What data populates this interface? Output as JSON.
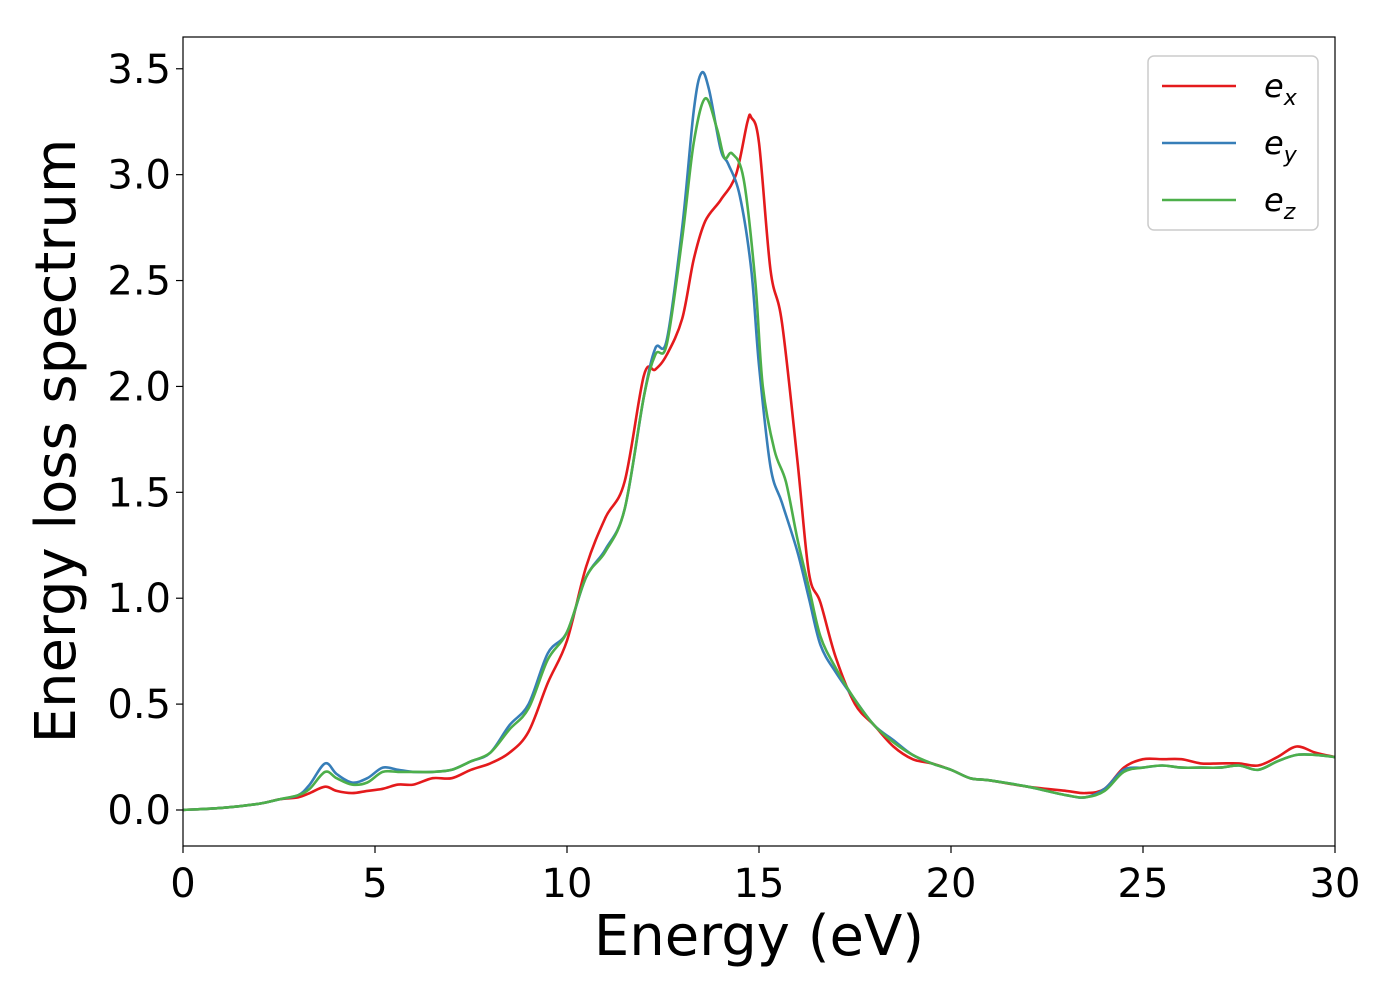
{
  "chart_data": {
    "type": "line",
    "title": "",
    "xlabel": "Energy (eV)",
    "ylabel": "Energy loss spectrum",
    "xlim": [
      0,
      30
    ],
    "ylim": [
      -0.17,
      3.65
    ],
    "xticks": [
      0,
      5,
      10,
      15,
      20,
      25,
      30
    ],
    "xtick_labels": [
      "0",
      "5",
      "10",
      "15",
      "20",
      "25",
      "30"
    ],
    "yticks": [
      0.0,
      0.5,
      1.0,
      1.5,
      2.0,
      2.5,
      3.0,
      3.5
    ],
    "ytick_labels": [
      "0.0",
      "0.5",
      "1.0",
      "1.5",
      "2.0",
      "2.5",
      "3.0",
      "3.5"
    ],
    "grid": false,
    "legend_position": "top-right",
    "series": [
      {
        "name": "e_x",
        "label_base": "e",
        "label_sub": "x",
        "color": "#e41a1c",
        "x": [
          0,
          1,
          2,
          2.5,
          3,
          3.3,
          3.7,
          4.0,
          4.4,
          4.8,
          5.2,
          5.6,
          6.0,
          6.5,
          7.0,
          7.5,
          8.0,
          8.5,
          9.0,
          9.5,
          10.0,
          10.5,
          11.0,
          11.5,
          12.0,
          12.3,
          12.6,
          13.0,
          13.3,
          13.6,
          14.0,
          14.4,
          14.7,
          14.8,
          15.0,
          15.3,
          15.6,
          16.0,
          16.3,
          16.6,
          17.0,
          17.5,
          18.0,
          18.5,
          19.0,
          19.5,
          20.0,
          20.5,
          21.0,
          22.0,
          23.0,
          23.5,
          24.0,
          24.5,
          25.0,
          25.5,
          26.0,
          26.5,
          27.0,
          27.5,
          28.0,
          28.5,
          29.0,
          29.5,
          30.0
        ],
        "y": [
          0.0,
          0.01,
          0.03,
          0.05,
          0.06,
          0.08,
          0.11,
          0.09,
          0.08,
          0.09,
          0.1,
          0.12,
          0.12,
          0.15,
          0.15,
          0.19,
          0.22,
          0.27,
          0.37,
          0.6,
          0.8,
          1.15,
          1.38,
          1.55,
          2.05,
          2.08,
          2.15,
          2.32,
          2.6,
          2.78,
          2.88,
          3.0,
          3.25,
          3.27,
          3.15,
          2.55,
          2.3,
          1.65,
          1.12,
          0.98,
          0.72,
          0.5,
          0.4,
          0.3,
          0.24,
          0.22,
          0.19,
          0.15,
          0.14,
          0.11,
          0.09,
          0.08,
          0.1,
          0.2,
          0.24,
          0.24,
          0.24,
          0.22,
          0.22,
          0.22,
          0.21,
          0.25,
          0.3,
          0.27,
          0.25
        ]
      },
      {
        "name": "e_y",
        "label_base": "e",
        "label_sub": "y",
        "color": "#377eb8",
        "x": [
          0,
          1,
          2,
          2.5,
          3,
          3.3,
          3.7,
          4.0,
          4.4,
          4.8,
          5.2,
          5.6,
          6.0,
          6.5,
          7.0,
          7.5,
          8.0,
          8.5,
          9.0,
          9.5,
          10.0,
          10.5,
          11.0,
          11.5,
          12.0,
          12.3,
          12.6,
          13.0,
          13.3,
          13.5,
          13.7,
          14.0,
          14.2,
          14.5,
          14.8,
          15.0,
          15.3,
          15.6,
          16.0,
          16.3,
          16.6,
          17.0,
          17.5,
          18.0,
          18.5,
          19.0,
          19.5,
          20.0,
          20.5,
          21.0,
          22.0,
          23.0,
          23.5,
          24.0,
          24.5,
          25.0,
          25.5,
          26.0,
          26.5,
          27.0,
          27.5,
          28.0,
          28.5,
          29.0,
          29.5,
          30.0
        ],
        "y": [
          0.0,
          0.01,
          0.03,
          0.05,
          0.07,
          0.12,
          0.22,
          0.17,
          0.13,
          0.15,
          0.2,
          0.19,
          0.18,
          0.18,
          0.19,
          0.23,
          0.27,
          0.4,
          0.5,
          0.74,
          0.84,
          1.1,
          1.23,
          1.42,
          1.95,
          2.18,
          2.22,
          2.75,
          3.3,
          3.48,
          3.4,
          3.12,
          3.05,
          2.9,
          2.55,
          2.1,
          1.62,
          1.45,
          1.22,
          1.0,
          0.78,
          0.65,
          0.52,
          0.4,
          0.33,
          0.26,
          0.22,
          0.19,
          0.15,
          0.14,
          0.11,
          0.07,
          0.06,
          0.1,
          0.19,
          0.2,
          0.21,
          0.2,
          0.2,
          0.2,
          0.21,
          0.19,
          0.23,
          0.26,
          0.26,
          0.25
        ]
      },
      {
        "name": "e_z",
        "label_base": "e",
        "label_sub": "z",
        "color": "#4daf4a",
        "x": [
          0,
          1,
          2,
          2.5,
          3,
          3.3,
          3.7,
          4.0,
          4.4,
          4.8,
          5.2,
          5.6,
          6.0,
          6.5,
          7.0,
          7.5,
          8.0,
          8.5,
          9.0,
          9.5,
          10.0,
          10.5,
          11.0,
          11.5,
          12.0,
          12.3,
          12.6,
          13.0,
          13.3,
          13.6,
          13.9,
          14.1,
          14.3,
          14.6,
          14.9,
          15.1,
          15.4,
          15.7,
          16.0,
          16.3,
          16.6,
          17.0,
          17.5,
          18.0,
          18.5,
          19.0,
          19.5,
          20.0,
          20.5,
          21.0,
          22.0,
          23.0,
          23.5,
          24.0,
          24.5,
          25.0,
          25.5,
          26.0,
          26.5,
          27.0,
          27.5,
          28.0,
          28.5,
          29.0,
          29.5,
          30.0
        ],
        "y": [
          0.0,
          0.01,
          0.03,
          0.05,
          0.07,
          0.1,
          0.18,
          0.15,
          0.12,
          0.13,
          0.18,
          0.18,
          0.18,
          0.18,
          0.19,
          0.23,
          0.27,
          0.38,
          0.48,
          0.71,
          0.84,
          1.1,
          1.22,
          1.42,
          1.95,
          2.15,
          2.2,
          2.7,
          3.15,
          3.36,
          3.22,
          3.08,
          3.1,
          2.98,
          2.5,
          2.0,
          1.7,
          1.55,
          1.28,
          1.05,
          0.82,
          0.67,
          0.52,
          0.4,
          0.32,
          0.26,
          0.22,
          0.19,
          0.15,
          0.14,
          0.11,
          0.07,
          0.06,
          0.09,
          0.18,
          0.2,
          0.21,
          0.2,
          0.2,
          0.2,
          0.21,
          0.19,
          0.23,
          0.26,
          0.26,
          0.25
        ]
      }
    ]
  }
}
